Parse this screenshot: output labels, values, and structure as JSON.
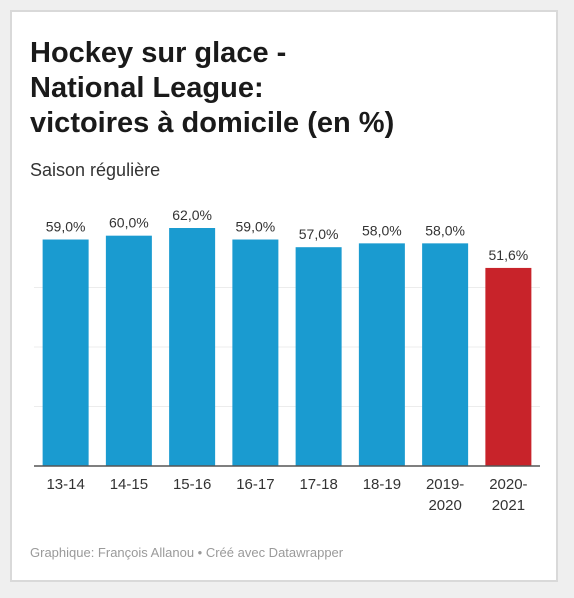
{
  "chart_data": {
    "type": "bar",
    "title": [
      "Hockey sur glace -",
      "National League:",
      "victoires à domicile (en %)"
    ],
    "subtitle": "Saison régulière",
    "categories": [
      [
        "13-14"
      ],
      [
        "14-15"
      ],
      [
        "15-16"
      ],
      [
        "16-17"
      ],
      [
        "17-18"
      ],
      [
        "18-19"
      ],
      [
        "2019-",
        "2020"
      ],
      [
        "2020-",
        "2021"
      ]
    ],
    "values": [
      59.0,
      60.0,
      62.0,
      59.0,
      57.0,
      58.0,
      58.0,
      51.6
    ],
    "data_labels": [
      "59,0%",
      "60,0%",
      "62,0%",
      "59,0%",
      "57,0%",
      "58,0%",
      "58,0%",
      "51,6%"
    ],
    "colors": [
      "#1a9bd0",
      "#1a9bd0",
      "#1a9bd0",
      "#1a9bd0",
      "#1a9bd0",
      "#1a9bd0",
      "#1a9bd0",
      "#c8232a"
    ],
    "ylim": [
      0,
      62
    ],
    "grid": true,
    "xlabel": "",
    "ylabel": ""
  },
  "footer": "Graphique: François Allanou • Créé avec Datawrapper"
}
